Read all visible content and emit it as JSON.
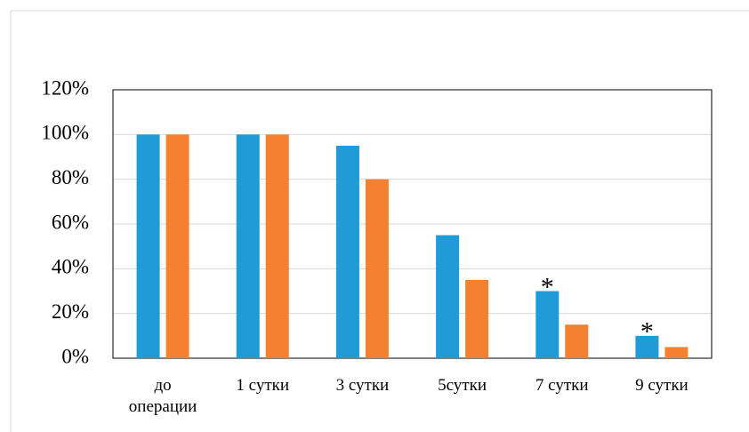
{
  "chart_data": {
    "type": "bar",
    "categories": [
      "до\nоперации",
      "1 сутки",
      "3 сутки",
      "5сутки",
      "7 сутки",
      "9 сутки"
    ],
    "series": [
      {
        "color": "#1f9bd8",
        "values": [
          100,
          100,
          95,
          55,
          30,
          10
        ]
      },
      {
        "color": "#f4812f",
        "values": [
          100,
          100,
          80,
          35,
          15,
          5
        ]
      }
    ],
    "ylim": [
      0,
      120
    ],
    "yticks": [
      {
        "value": 0,
        "label": "0%"
      },
      {
        "value": 20,
        "label": "20%"
      },
      {
        "value": 40,
        "label": "40%"
      },
      {
        "value": 60,
        "label": "60%"
      },
      {
        "value": 80,
        "label": "80%"
      },
      {
        "value": 100,
        "label": "100%"
      },
      {
        "value": 120,
        "label": "120%"
      }
    ],
    "grid": true,
    "annotations": [
      {
        "text": "*",
        "category": "7 сутки"
      },
      {
        "text": "*",
        "category": "9 сутки"
      }
    ]
  }
}
